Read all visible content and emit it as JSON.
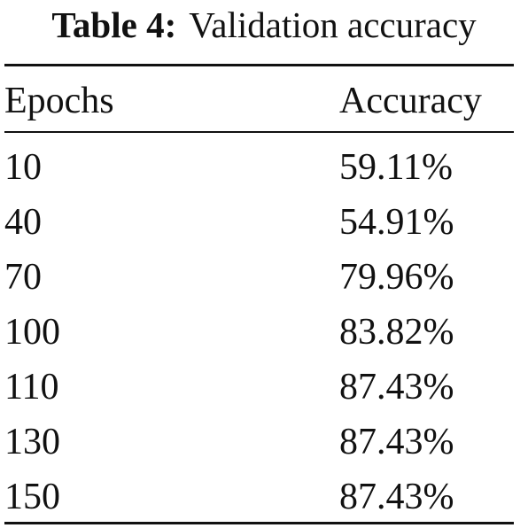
{
  "caption": {
    "label": "Table 4:",
    "text": "Validation accuracy"
  },
  "table": {
    "headers": [
      "Epochs",
      "Accuracy"
    ],
    "rows": [
      {
        "epochs": "10",
        "accuracy": "59.11%"
      },
      {
        "epochs": "40",
        "accuracy": "54.91%"
      },
      {
        "epochs": "70",
        "accuracy": "79.96%"
      },
      {
        "epochs": "100",
        "accuracy": "83.82%"
      },
      {
        "epochs": "110",
        "accuracy": "87.43%"
      },
      {
        "epochs": "130",
        "accuracy": "87.43%"
      },
      {
        "epochs": "150",
        "accuracy": "87.43%"
      }
    ]
  }
}
